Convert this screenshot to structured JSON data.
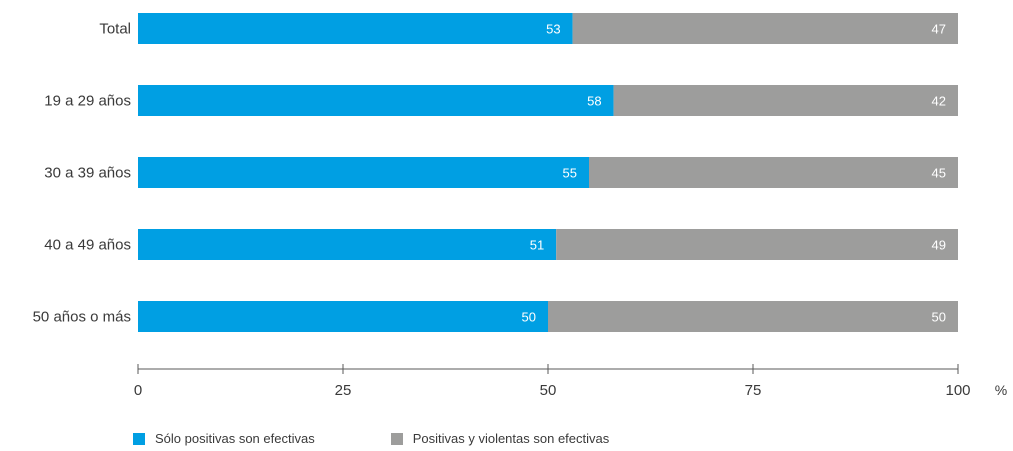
{
  "chart_data": {
    "type": "bar",
    "orientation": "horizontal",
    "stacked": true,
    "categories": [
      "Total",
      "19 a 29 años",
      "30 a 39 años",
      "40 a 49 años",
      "50 años o más"
    ],
    "series": [
      {
        "name": "Sólo positivas son efectivas",
        "values": [
          53,
          58,
          55,
          51,
          50
        ],
        "color": "#009fe3"
      },
      {
        "name": "Positivas y violentas son efectivas",
        "values": [
          47,
          42,
          45,
          49,
          50
        ],
        "color": "#9d9d9c"
      }
    ],
    "x_ticks": [
      "0",
      "25",
      "50",
      "75",
      "100"
    ],
    "x_tick_values": [
      0,
      25,
      50,
      75,
      100
    ],
    "xlim": [
      0,
      100
    ],
    "x_unit": "%",
    "grid": false,
    "legend_position": "bottom-left"
  }
}
